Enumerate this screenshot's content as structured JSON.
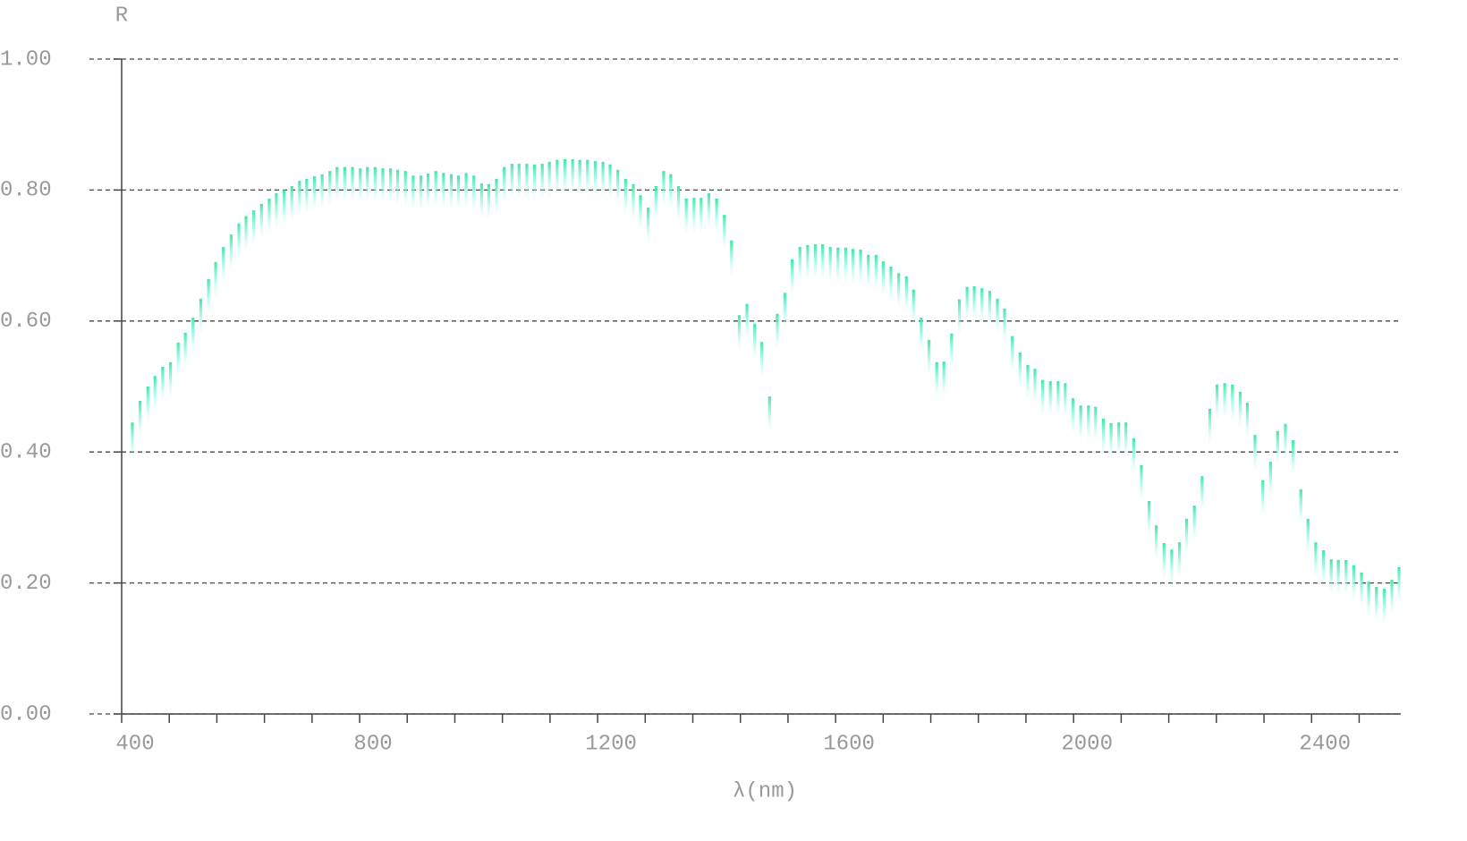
{
  "chart_data": {
    "type": "spectrum",
    "xlabel": "λ(nm)",
    "ylabel": "R",
    "xlim": [
      400,
      2550
    ],
    "ylim": [
      0,
      1
    ],
    "xticks": [
      400,
      800,
      1200,
      1600,
      2000,
      2400
    ],
    "xminorticks": [
      480,
      560,
      640,
      720,
      880,
      960,
      1040,
      1120,
      1280,
      1360,
      1440,
      1520,
      1680,
      1760,
      1840,
      1920,
      2080,
      2160,
      2240,
      2320,
      2480
    ],
    "yticks": [
      {
        "value": 0,
        "label": "0.00"
      },
      {
        "value": 0.2,
        "label": "0.20"
      },
      {
        "value": 0.4,
        "label": "0.40"
      },
      {
        "value": 0.6,
        "label": "0.60"
      },
      {
        "value": 0.8,
        "label": "0.80"
      },
      {
        "value": 1,
        "label": "1.00"
      }
    ],
    "grid": true,
    "color": "#3ee8a0",
    "x": [
      418,
      431,
      444,
      456,
      469,
      482,
      495,
      507,
      520,
      533,
      546,
      558,
      571,
      584,
      597,
      609,
      622,
      635,
      648,
      660,
      673,
      686,
      699,
      711,
      724,
      737,
      750,
      762,
      775,
      788,
      801,
      813,
      826,
      839,
      852,
      864,
      877,
      890,
      903,
      915,
      928,
      941,
      954,
      966,
      979,
      992,
      1005,
      1017,
      1030,
      1043,
      1056,
      1068,
      1081,
      1094,
      1107,
      1119,
      1132,
      1145,
      1158,
      1170,
      1183,
      1196,
      1209,
      1221,
      1234,
      1247,
      1260,
      1272,
      1285,
      1298,
      1311,
      1323,
      1336,
      1349,
      1362,
      1374,
      1387,
      1400,
      1413,
      1425,
      1438,
      1451,
      1464,
      1476,
      1489,
      1502,
      1515,
      1527,
      1540,
      1553,
      1566,
      1578,
      1591,
      1604,
      1617,
      1629,
      1642,
      1655,
      1668,
      1680,
      1693,
      1706,
      1719,
      1731,
      1744,
      1757,
      1770,
      1782,
      1795,
      1808,
      1821,
      1833,
      1846,
      1859,
      1872,
      1884,
      1897,
      1910,
      1923,
      1935,
      1948,
      1961,
      1974,
      1986,
      1999,
      2012,
      2025,
      2037,
      2050,
      2063,
      2076,
      2088,
      2101,
      2114,
      2127,
      2139,
      2152,
      2165,
      2178,
      2190,
      2203,
      2216,
      2229,
      2241,
      2254,
      2267,
      2280,
      2292,
      2305,
      2318,
      2331,
      2343,
      2356,
      2369,
      2382,
      2394,
      2407,
      2420,
      2433,
      2445,
      2458,
      2471,
      2484,
      2496,
      2509,
      2522,
      2535,
      2547
    ],
    "values": [
      0.445,
      0.478,
      0.5,
      0.516,
      0.53,
      0.537,
      0.567,
      0.582,
      0.605,
      0.634,
      0.664,
      0.69,
      0.713,
      0.732,
      0.749,
      0.76,
      0.769,
      0.779,
      0.787,
      0.795,
      0.8,
      0.806,
      0.814,
      0.817,
      0.821,
      0.824,
      0.829,
      0.835,
      0.835,
      0.835,
      0.833,
      0.835,
      0.835,
      0.833,
      0.833,
      0.831,
      0.829,
      0.822,
      0.822,
      0.825,
      0.829,
      0.826,
      0.824,
      0.822,
      0.826,
      0.822,
      0.81,
      0.809,
      0.817,
      0.835,
      0.84,
      0.84,
      0.84,
      0.839,
      0.84,
      0.843,
      0.846,
      0.847,
      0.847,
      0.846,
      0.846,
      0.844,
      0.843,
      0.839,
      0.831,
      0.817,
      0.809,
      0.792,
      0.773,
      0.806,
      0.829,
      0.824,
      0.806,
      0.787,
      0.788,
      0.788,
      0.795,
      0.787,
      0.762,
      0.723,
      0.609,
      0.626,
      0.596,
      0.568,
      0.485,
      0.611,
      0.643,
      0.694,
      0.713,
      0.716,
      0.717,
      0.717,
      0.713,
      0.712,
      0.712,
      0.71,
      0.709,
      0.701,
      0.701,
      0.691,
      0.683,
      0.673,
      0.668,
      0.648,
      0.605,
      0.571,
      0.537,
      0.538,
      0.581,
      0.633,
      0.652,
      0.653,
      0.65,
      0.646,
      0.634,
      0.619,
      0.577,
      0.552,
      0.533,
      0.527,
      0.51,
      0.508,
      0.508,
      0.505,
      0.482,
      0.471,
      0.471,
      0.469,
      0.451,
      0.444,
      0.445,
      0.445,
      0.421,
      0.38,
      0.325,
      0.288,
      0.261,
      0.251,
      0.262,
      0.298,
      0.318,
      0.363,
      0.466,
      0.503,
      0.505,
      0.503,
      0.492,
      0.475,
      0.426,
      0.357,
      0.385,
      0.432,
      0.443,
      0.418,
      0.343,
      0.298,
      0.262,
      0.25,
      0.236,
      0.235,
      0.235,
      0.227,
      0.216,
      0.202,
      0.194,
      0.191,
      0.205,
      0.224
    ]
  }
}
